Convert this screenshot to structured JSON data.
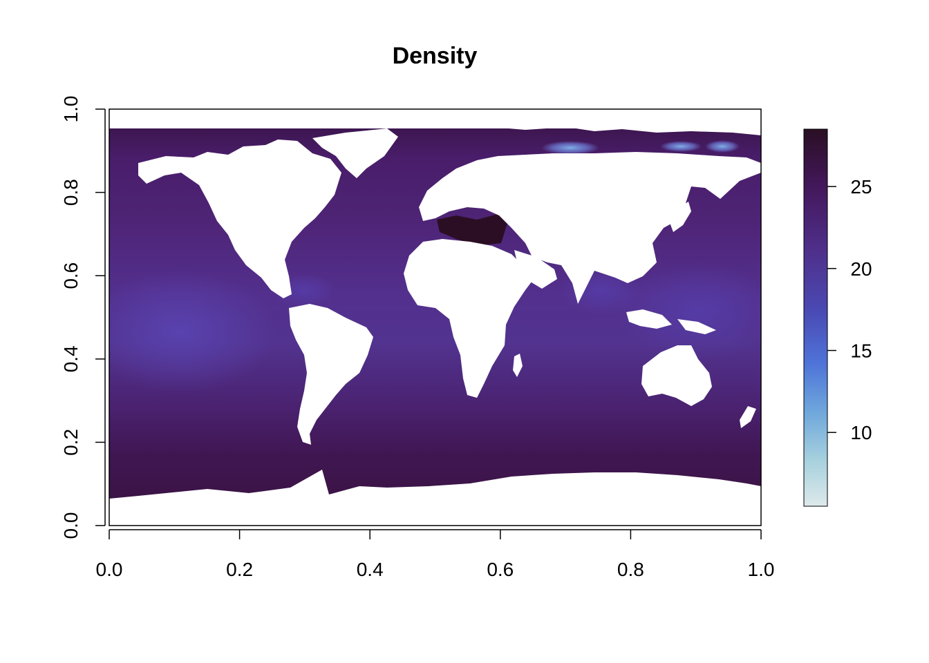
{
  "chart_data": {
    "type": "heatmap",
    "title": "Density",
    "xlabel": "",
    "ylabel": "",
    "xlim": [
      0,
      1
    ],
    "ylim": [
      0,
      1
    ],
    "x_ticks": [
      "0.0",
      "0.2",
      "0.4",
      "0.6",
      "0.8",
      "1.0"
    ],
    "y_ticks": [
      "0.0",
      "0.2",
      "0.4",
      "0.6",
      "0.8",
      "1.0"
    ],
    "legend": {
      "position": "right",
      "range": [
        5.5,
        28.5
      ],
      "ticks": [
        "10",
        "15",
        "20",
        "25"
      ],
      "palette": [
        "#dde9ea",
        "#a7d1de",
        "#6fa7dc",
        "#4e73d8",
        "#4a49b3",
        "#4f2f8a",
        "#43175a",
        "#2a0f24"
      ]
    },
    "field_description_values": {
      "tropical_ocean": 21,
      "midlatitude_ocean": 24,
      "southern_ocean": 26,
      "mediterranean": 28,
      "arctic_ice_edge": 13
    },
    "land_color": "#ffffff",
    "grid": false
  }
}
